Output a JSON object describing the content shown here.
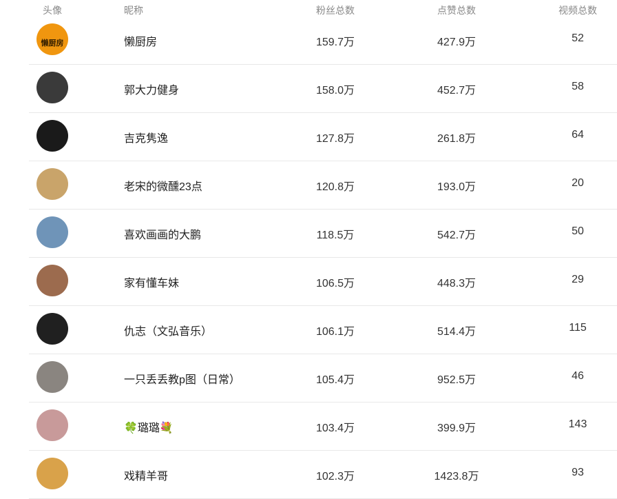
{
  "table": {
    "headers": {
      "avatar": "头像",
      "nickname": "昵称",
      "fans": "粉丝总数",
      "likes": "点赞总数",
      "videos": "视频总数"
    },
    "rows": [
      {
        "nickname": "懒厨房",
        "fans": "159.7万",
        "likes": "427.9万",
        "videos": "52",
        "avatar_color": "#f0960f",
        "avatar_text": "懒厨房"
      },
      {
        "nickname": "郭大力健身",
        "fans": "158.0万",
        "likes": "452.7万",
        "videos": "58",
        "avatar_color": "#3a3a3a"
      },
      {
        "nickname": "吉克隽逸",
        "fans": "127.8万",
        "likes": "261.8万",
        "videos": "64",
        "avatar_color": "#1a1a1a"
      },
      {
        "nickname": "老宋的微醺23点",
        "fans": "120.8万",
        "likes": "193.0万",
        "videos": "20",
        "avatar_color": "#c9a46a"
      },
      {
        "nickname": "喜欢画画的大鹏",
        "fans": "118.5万",
        "likes": "542.7万",
        "videos": "50",
        "avatar_color": "#6f94b8"
      },
      {
        "nickname": "家有懂车妹",
        "fans": "106.5万",
        "likes": "448.3万",
        "videos": "29",
        "avatar_color": "#9c6b4e"
      },
      {
        "nickname": "仇志（文弘音乐）",
        "fans": "106.1万",
        "likes": "514.4万",
        "videos": "115",
        "avatar_color": "#202020"
      },
      {
        "nickname": "一只丢丢教p图（日常）",
        "fans": "105.4万",
        "likes": "952.5万",
        "videos": "46",
        "avatar_color": "#8a8580"
      },
      {
        "nickname": "🍀璐璐💐",
        "fans": "103.4万",
        "likes": "399.9万",
        "videos": "143",
        "avatar_color": "#c89a9a"
      },
      {
        "nickname": "戏精羊哥",
        "fans": "102.3万",
        "likes": "1423.8万",
        "videos": "93",
        "avatar_color": "#d9a24a"
      }
    ]
  }
}
